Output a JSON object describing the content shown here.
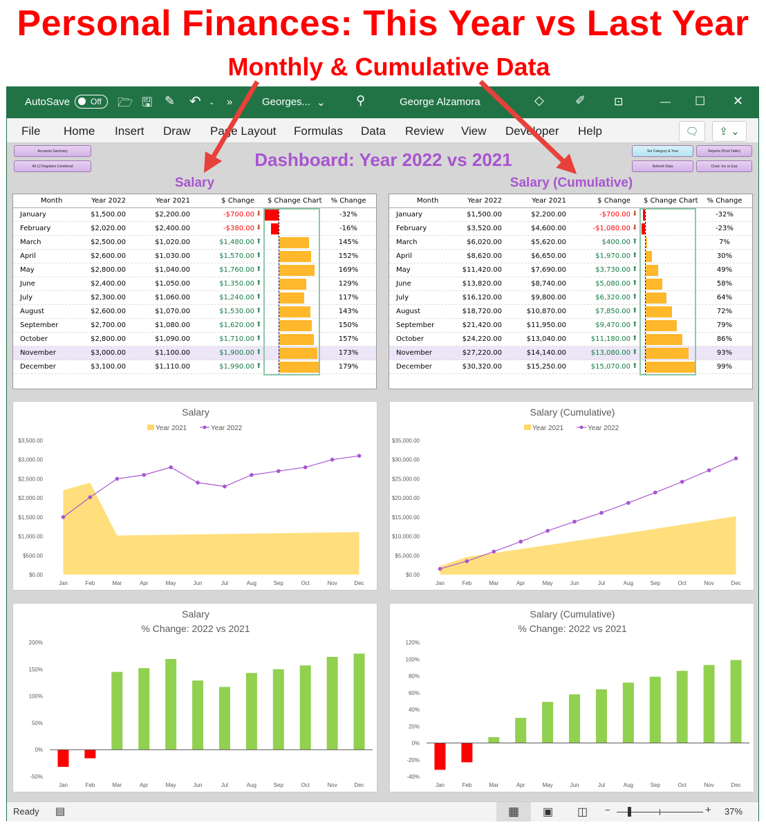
{
  "headline": "Personal Finances: This Year vs Last Year",
  "subhead": "Monthly & Cumulative Data",
  "titlebar": {
    "autosave": "AutoSave",
    "autosave_state": "Off",
    "more": "»",
    "filename": "Georges...",
    "user": "George Alzamora"
  },
  "ribbon": {
    "tabs": [
      "File",
      "Home",
      "Insert",
      "Draw",
      "Page Layout",
      "Formulas",
      "Data",
      "Review",
      "View",
      "Developer",
      "Help"
    ]
  },
  "buttons": {
    "accounts_summary": "Accounts Summary",
    "all_registers": "All 12 Registers Combined",
    "set_category": "Set Category & Year",
    "reports": "Reports (Pivot Table)",
    "refresh": "Refresh Data",
    "chart_inc_exp": "Chart: Inc vs Exp"
  },
  "dashboard_title": "Dashboard: Year 2022 vs 2021",
  "colors": {
    "accent": "#a855d0",
    "excel_green": "#217346",
    "positive": "#107c41",
    "negative": "#ff0000",
    "bar_positive": "#ffb72b",
    "area": "#ffd966",
    "line": "#a855d0",
    "green_bar": "#92d050"
  },
  "tables": [
    {
      "title": "Salary",
      "headers": [
        "Month",
        "Year 2022",
        "Year 2021",
        "$ Change",
        "$ Change Chart",
        "% Change"
      ],
      "highlight_row": 10,
      "rows": [
        [
          "January",
          "$1,500.00",
          "$2,200.00",
          "-$700.00",
          "-32%"
        ],
        [
          "February",
          "$2,020.00",
          "$2,400.00",
          "-$380.00",
          "-16%"
        ],
        [
          "March",
          "$2,500.00",
          "$1,020.00",
          "$1,480.00",
          "145%"
        ],
        [
          "April",
          "$2,600.00",
          "$1,030.00",
          "$1,570.00",
          "152%"
        ],
        [
          "May",
          "$2,800.00",
          "$1,040.00",
          "$1,760.00",
          "169%"
        ],
        [
          "June",
          "$2,400.00",
          "$1,050.00",
          "$1,350.00",
          "129%"
        ],
        [
          "July",
          "$2,300.00",
          "$1,060.00",
          "$1,240.00",
          "117%"
        ],
        [
          "August",
          "$2,600.00",
          "$1,070.00",
          "$1,530.00",
          "143%"
        ],
        [
          "September",
          "$2,700.00",
          "$1,080.00",
          "$1,620.00",
          "150%"
        ],
        [
          "October",
          "$2,800.00",
          "$1,090.00",
          "$1,710.00",
          "157%"
        ],
        [
          "November",
          "$3,000.00",
          "$1,100.00",
          "$1,900.00",
          "173%"
        ],
        [
          "December",
          "$3,100.00",
          "$1,110.00",
          "$1,990.00",
          "179%"
        ]
      ],
      "change_values": [
        -700,
        -380,
        1480,
        1570,
        1760,
        1350,
        1240,
        1530,
        1620,
        1710,
        1900,
        1990
      ]
    },
    {
      "title": "Salary (Cumulative)",
      "headers": [
        "Month",
        "Year 2022",
        "Year 2021",
        "$ Change",
        "$ Change Chart",
        "% Change"
      ],
      "highlight_row": 10,
      "rows": [
        [
          "January",
          "$1,500.00",
          "$2,200.00",
          "-$700.00",
          "-32%"
        ],
        [
          "February",
          "$3,520.00",
          "$4,600.00",
          "-$1,080.00",
          "-23%"
        ],
        [
          "March",
          "$6,020.00",
          "$5,620.00",
          "$400.00",
          "7%"
        ],
        [
          "April",
          "$8,620.00",
          "$6,650.00",
          "$1,970.00",
          "30%"
        ],
        [
          "May",
          "$11,420.00",
          "$7,690.00",
          "$3,730.00",
          "49%"
        ],
        [
          "June",
          "$13,820.00",
          "$8,740.00",
          "$5,080.00",
          "58%"
        ],
        [
          "July",
          "$16,120.00",
          "$9,800.00",
          "$6,320.00",
          "64%"
        ],
        [
          "August",
          "$18,720.00",
          "$10,870.00",
          "$7,850.00",
          "72%"
        ],
        [
          "September",
          "$21,420.00",
          "$11,950.00",
          "$9,470.00",
          "79%"
        ],
        [
          "October",
          "$24,220.00",
          "$13,040.00",
          "$11,180.00",
          "86%"
        ],
        [
          "November",
          "$27,220.00",
          "$14,140.00",
          "$13,080.00",
          "93%"
        ],
        [
          "December",
          "$30,320.00",
          "$15,250.00",
          "$15,070.00",
          "99%"
        ]
      ],
      "change_values": [
        -700,
        -1080,
        400,
        1970,
        3730,
        5080,
        6320,
        7850,
        9470,
        11180,
        13080,
        15070
      ]
    }
  ],
  "chart_data": [
    {
      "type": "area+line",
      "title": "Salary",
      "categories": [
        "Jan",
        "Feb",
        "Mar",
        "Apr",
        "May",
        "Jun",
        "Jul",
        "Aug",
        "Sep",
        "Oct",
        "Nov",
        "Dec"
      ],
      "series": [
        {
          "name": "Year  2021",
          "type": "area",
          "values": [
            2200,
            2400,
            1020,
            1030,
            1040,
            1050,
            1060,
            1070,
            1080,
            1090,
            1100,
            1110
          ]
        },
        {
          "name": "Year  2022",
          "type": "line",
          "values": [
            1500,
            2020,
            2500,
            2600,
            2800,
            2400,
            2300,
            2600,
            2700,
            2800,
            3000,
            3100
          ]
        }
      ],
      "ylim": [
        0,
        3500
      ],
      "ystep": 500,
      "yticks": [
        "$0.00",
        "$500.00",
        "$1,000.00",
        "$1,500.00",
        "$2,000.00",
        "$2,500.00",
        "$3,000.00",
        "$3,500.00"
      ],
      "legend": "top"
    },
    {
      "type": "area+line",
      "title": "Salary (Cumulative)",
      "categories": [
        "Jan",
        "Feb",
        "Mar",
        "Apr",
        "May",
        "Jun",
        "Jul",
        "Aug",
        "Sep",
        "Oct",
        "Nov",
        "Dec"
      ],
      "series": [
        {
          "name": "Year  2021",
          "type": "area",
          "values": [
            2200,
            4600,
            5620,
            6650,
            7690,
            8740,
            9800,
            10870,
            11950,
            13040,
            14140,
            15250
          ]
        },
        {
          "name": "Year  2022",
          "type": "line",
          "values": [
            1500,
            3520,
            6020,
            8620,
            11420,
            13820,
            16120,
            18720,
            21420,
            24220,
            27220,
            30320
          ]
        }
      ],
      "ylim": [
        0,
        35000
      ],
      "ystep": 5000,
      "yticks": [
        "$0.00",
        "$5,000.00",
        "$10,000.00",
        "$15,000.00",
        "$20,000.00",
        "$25,000.00",
        "$30,000.00",
        "$35,000.00"
      ],
      "legend": "top"
    },
    {
      "type": "bar",
      "title": "Salary",
      "subtitle": "% Change: 2022 vs 2021",
      "categories": [
        "Jan",
        "Feb",
        "Mar",
        "Apr",
        "May",
        "Jun",
        "Jul",
        "Aug",
        "Sep",
        "Oct",
        "Nov",
        "Dec"
      ],
      "values": [
        -32,
        -16,
        145,
        152,
        169,
        129,
        117,
        143,
        150,
        157,
        173,
        179
      ],
      "ylim": [
        -50,
        200
      ],
      "ystep": 50,
      "yticks": [
        "-50%",
        "0%",
        "50%",
        "100%",
        "150%",
        "200%"
      ]
    },
    {
      "type": "bar",
      "title": "Salary (Cumulative)",
      "subtitle": "% Change: 2022 vs 2021",
      "categories": [
        "Jan",
        "Feb",
        "Mar",
        "Apr",
        "May",
        "Jun",
        "Jul",
        "Aug",
        "Sep",
        "Oct",
        "Nov",
        "Dec"
      ],
      "values": [
        -32,
        -23,
        7,
        30,
        49,
        58,
        64,
        72,
        79,
        86,
        93,
        99
      ],
      "ylim": [
        -40,
        120
      ],
      "ystep": 20,
      "yticks": [
        "-40%",
        "-20%",
        "0%",
        "20%",
        "40%",
        "60%",
        "80%",
        "100%",
        "120%"
      ]
    }
  ],
  "status": {
    "ready": "Ready",
    "zoom": "37%",
    "zoom_level": 37
  }
}
